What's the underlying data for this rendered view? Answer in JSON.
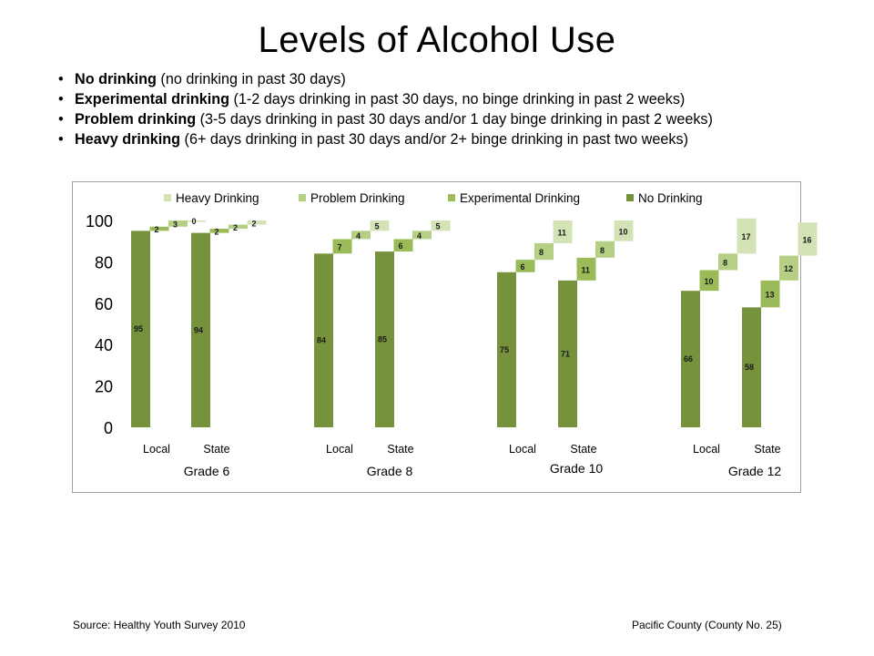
{
  "slide": {
    "title": "Levels of Alcohol Use",
    "definitions": [
      {
        "name": "No drinking",
        "detail": " (no drinking in past 30 days)"
      },
      {
        "name": "Experimental  drinking",
        "detail": " (1-2 days drinking in past 30 days, no binge drinking in past 2 weeks)"
      },
      {
        "name": "Problem drinking",
        "detail": " (3-5 days drinking in past 30 days and/or 1 day binge drinking in past 2 weeks)"
      },
      {
        "name": "Heavy drinking",
        "detail": " (6+ days drinking in past 30 days and/or 2+ binge drinking in past two weeks)"
      }
    ],
    "bullet_char": "•"
  },
  "footer": {
    "source": "Source: Healthy Youth Survey 2010",
    "county": "Pacific County (County No. 25)"
  },
  "chart_data": {
    "type": "bar",
    "subtype": "stacked-waterfall",
    "title": "",
    "xlabel": "",
    "ylabel": "",
    "ylim": [
      0,
      100
    ],
    "yticks": [
      0,
      20,
      40,
      60,
      80,
      100
    ],
    "grid": false,
    "legend_position": "top",
    "legend_order": [
      "Heavy  Drinking",
      "Problem  Drinking",
      "Experimental  Drinking",
      "No Drinking"
    ],
    "groups": [
      "Grade 6",
      "Grade 8",
      "Grade 10",
      "Grade 12"
    ],
    "categories": [
      "Local",
      "State",
      "Local",
      "State",
      "Local",
      "State",
      "Local",
      "State"
    ],
    "category_group": [
      0,
      0,
      1,
      1,
      2,
      2,
      3,
      3
    ],
    "series": [
      {
        "name": "No Drinking",
        "color": "#76923c",
        "values": [
          95,
          94,
          84,
          85,
          75,
          71,
          66,
          58
        ]
      },
      {
        "name": "Experimental  Drinking",
        "color": "#9bbb59",
        "values": [
          2,
          2,
          7,
          6,
          6,
          11,
          10,
          13
        ]
      },
      {
        "name": "Problem  Drinking",
        "color": "#b5d085",
        "values": [
          3,
          2,
          4,
          4,
          8,
          8,
          8,
          12
        ]
      },
      {
        "name": "Heavy  Drinking",
        "color": "#d3e3b6",
        "values": [
          0,
          2,
          5,
          5,
          11,
          10,
          17,
          16
        ]
      }
    ]
  }
}
